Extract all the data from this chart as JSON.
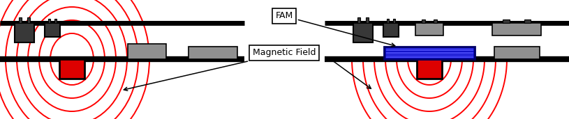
{
  "bg_color": "#ffffff",
  "black": "#000000",
  "red": "#ff0000",
  "dark_gray": "#383838",
  "mid_gray": "#686868",
  "gray": "#909090",
  "blue_dark": "#0000bb",
  "blue_light": "#5555ff",
  "label_fam": "FAM",
  "label_mf": "Magnetic Field",
  "n_ellipses": 6,
  "figw": 8.15,
  "figh": 1.71,
  "dpi": 100
}
